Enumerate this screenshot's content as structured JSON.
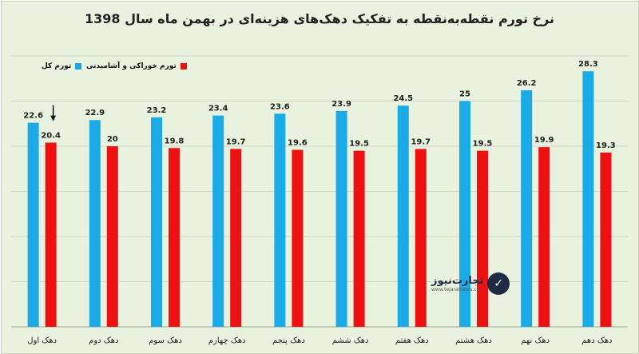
{
  "chart_data": {
    "type": "bar",
    "title": "نرخ تورم نقطه‌به‌نقطه به تفکیک دهک‌های هزینه‌ای در بهمن ماه سال 1398",
    "xlabel": "",
    "ylabel": "",
    "categories": [
      "دهک اول",
      "دهک دوم",
      "دهک سوم",
      "دهک چهارم",
      "دهک پنجم",
      "دهک ششم",
      "دهک هفتم",
      "دهک هشتم",
      "دهک نهم",
      "دهک دهم"
    ],
    "series": [
      {
        "name": "تورم کل",
        "color": "#1aabe6",
        "values": [
          22.6,
          22.9,
          23.2,
          23.4,
          23.6,
          23.9,
          24.5,
          25,
          26.2,
          28.3
        ]
      },
      {
        "name": "تورم خوراکی و آشامیدنی",
        "color": "#ee1111",
        "values": [
          20.4,
          20,
          19.8,
          19.7,
          19.6,
          19.5,
          19.7,
          19.5,
          19.9,
          19.3
        ]
      }
    ],
    "ylim": [
      0,
      30
    ],
    "grid": true,
    "legend": "top-left",
    "annotation": "arrow-down-icon"
  },
  "watermark": {
    "brand": "تجارت‌نیوز",
    "url": "www.tejaratnews.com",
    "logo_icon": "tejarat-logo-icon"
  }
}
